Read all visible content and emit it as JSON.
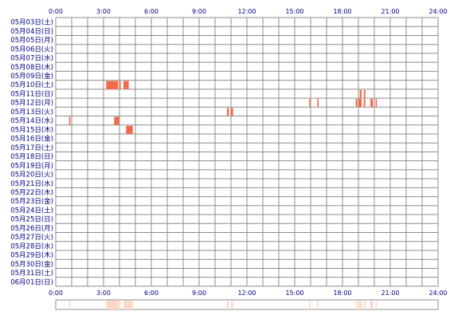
{
  "chart_data": {
    "type": "heatmap",
    "title": "",
    "xlabel": "",
    "ylabel": "",
    "xlim": [
      "0:00",
      "24:00"
    ],
    "x_ticks": [
      "0:00",
      "3:00",
      "6:00",
      "9:00",
      "12:00",
      "15:00",
      "18:00",
      "21:00",
      "24:00"
    ],
    "rows": [
      "05月03日(土)",
      "05月04日(日)",
      "05月05日(月)",
      "05月06日(火)",
      "05月07日(水)",
      "05月08日(木)",
      "05月09日(金)",
      "05月10日(土)",
      "05月11日(日)",
      "05月12日(月)",
      "05月13日(火)",
      "05月14日(水)",
      "05月15日(木)",
      "05月16日(金)",
      "05月17日(土)",
      "05月18日(日)",
      "05月19日(月)",
      "05月20日(火)",
      "05月21日(水)",
      "05月22日(木)",
      "05月23日(金)",
      "05月24日(土)",
      "05月25日(日)",
      "05月26日(月)",
      "05月27日(火)",
      "05月28日(水)",
      "05月29日(木)",
      "05月30日(金)",
      "05月31日(土)",
      "06月01日(日)"
    ],
    "events": [
      {
        "row": "05月10日(土)",
        "start": "3:10",
        "end": "3:55"
      },
      {
        "row": "05月10日(土)",
        "start": "4:00",
        "end": "4:05"
      },
      {
        "row": "05月10日(土)",
        "start": "4:15",
        "end": "4:35"
      },
      {
        "row": "05月11日(日)",
        "start": "19:05",
        "end": "19:12"
      },
      {
        "row": "05月11日(日)",
        "start": "19:20",
        "end": "19:26"
      },
      {
        "row": "05月12日(月)",
        "start": "15:55",
        "end": "16:00"
      },
      {
        "row": "05月12日(月)",
        "start": "16:25",
        "end": "16:30"
      },
      {
        "row": "05月12日(月)",
        "start": "18:50",
        "end": "18:56"
      },
      {
        "row": "05月12日(月)",
        "start": "19:00",
        "end": "19:12"
      },
      {
        "row": "05月12日(月)",
        "start": "19:20",
        "end": "19:26"
      },
      {
        "row": "05月12日(月)",
        "start": "19:45",
        "end": "19:55"
      },
      {
        "row": "05月12日(月)",
        "start": "20:05",
        "end": "20:09"
      },
      {
        "row": "05月13日(火)",
        "start": "10:45",
        "end": "10:52"
      },
      {
        "row": "05月13日(火)",
        "start": "11:00",
        "end": "11:08"
      },
      {
        "row": "05月14日(水)",
        "start": "0:50",
        "end": "0:55"
      },
      {
        "row": "05月14日(水)",
        "start": "3:40",
        "end": "3:58"
      },
      {
        "row": "05月15日(木)",
        "start": "4:25",
        "end": "4:50"
      }
    ],
    "colors": {
      "grid": "#8c8c8c",
      "event": "#f36a4a",
      "summary": "#fcd8c7",
      "labels": "#000080"
    }
  }
}
